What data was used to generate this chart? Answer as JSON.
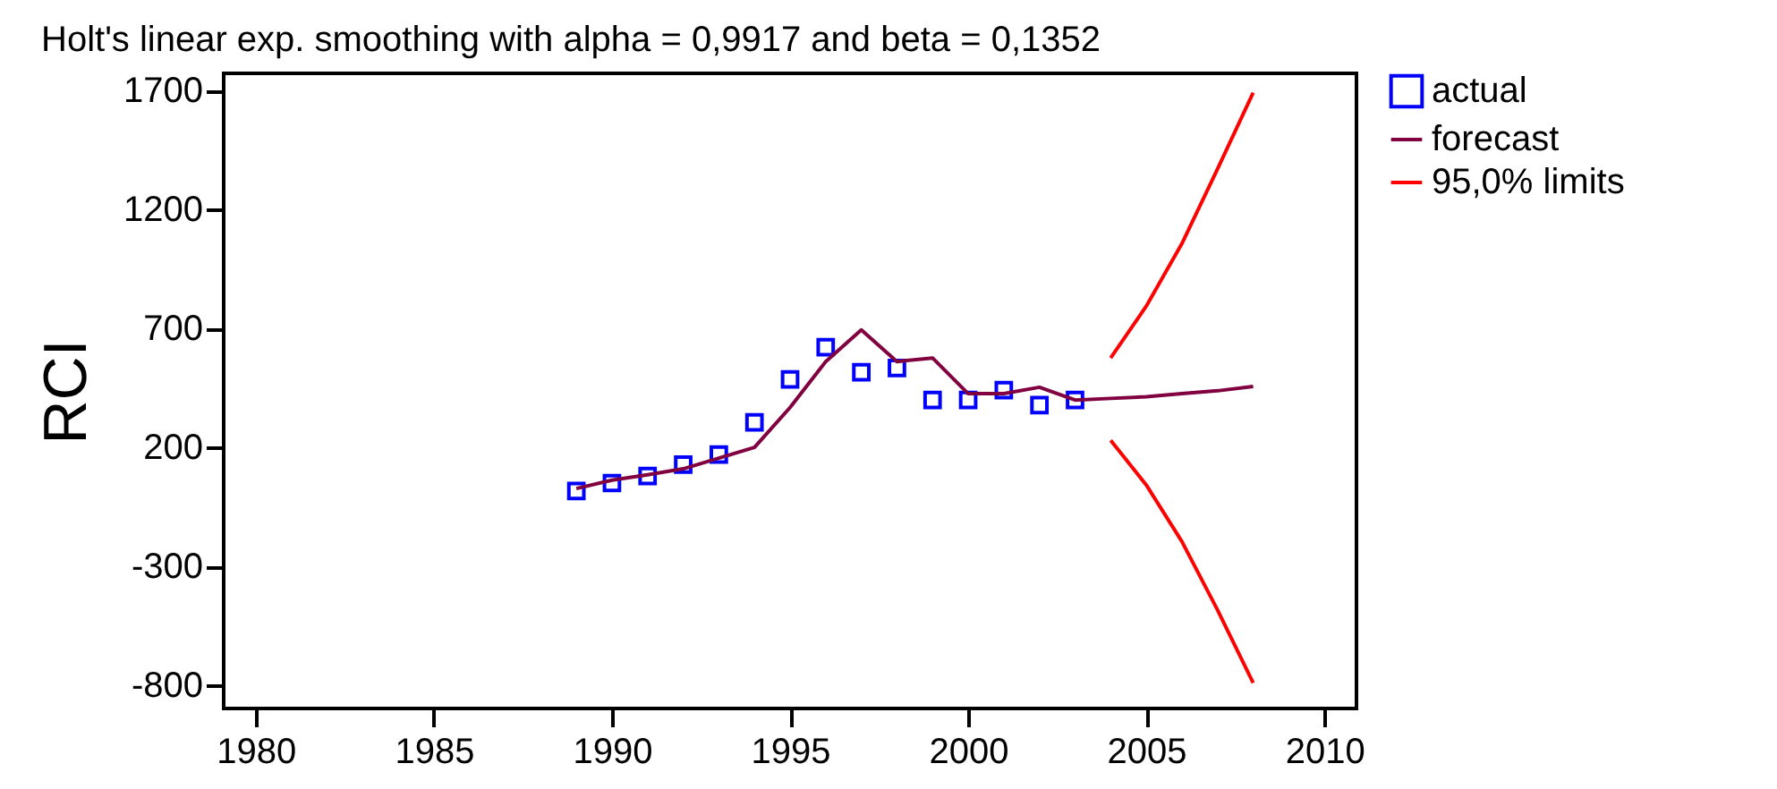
{
  "chart_data": {
    "type": "line",
    "title": "Holt's linear exp. smoothing with alpha = 0,9917 and beta = 0,1352",
    "ylabel": "RCI",
    "xlim": [
      1979.1,
      2010.9
    ],
    "xticks": [
      1980,
      1985,
      1990,
      1995,
      2000,
      2005,
      2010
    ],
    "ylim": [
      -898,
      1773
    ],
    "yticks": [
      -800,
      -300,
      200,
      700,
      1200,
      1700
    ],
    "grid": false,
    "legend": "top right",
    "series": [
      {
        "name": "actual",
        "type": "scatter",
        "marker": "square",
        "color": "#0000ff",
        "x": [
          1989,
          1990,
          1991,
          1992,
          1993,
          1994,
          1995,
          1996,
          1997,
          1998,
          1999,
          2000,
          2001,
          2002,
          2003
        ],
        "values": [
          17,
          50,
          80,
          128,
          170,
          305,
          486,
          621,
          516,
          534,
          399,
          399,
          441,
          378,
          399
        ]
      },
      {
        "name": "forecast",
        "color": "#800040",
        "x": [
          1989,
          1990,
          1991,
          1992,
          1993,
          1994,
          1995,
          1996,
          1997,
          1998,
          1999,
          2000,
          2001,
          2002,
          2003,
          2004,
          2005,
          2006,
          2007,
          2008
        ],
        "values": [
          27,
          62,
          85,
          110,
          155,
          200,
          368,
          561,
          694,
          561,
          576,
          426,
          426,
          453,
          399,
          406,
          413,
          426,
          438,
          456
        ]
      },
      {
        "name": "95,0% limits",
        "color": "#ff0000",
        "x": [
          2004,
          2005,
          2006,
          2007,
          2008
        ],
        "values": [
          576,
          794,
          1057,
          1371,
          1692
        ]
      },
      {
        "color": "#ff0000",
        "x": [
          2004,
          2005,
          2006,
          2007,
          2008
        ],
        "values": [
          230,
          42,
          -196,
          -484,
          -790
        ]
      }
    ]
  }
}
